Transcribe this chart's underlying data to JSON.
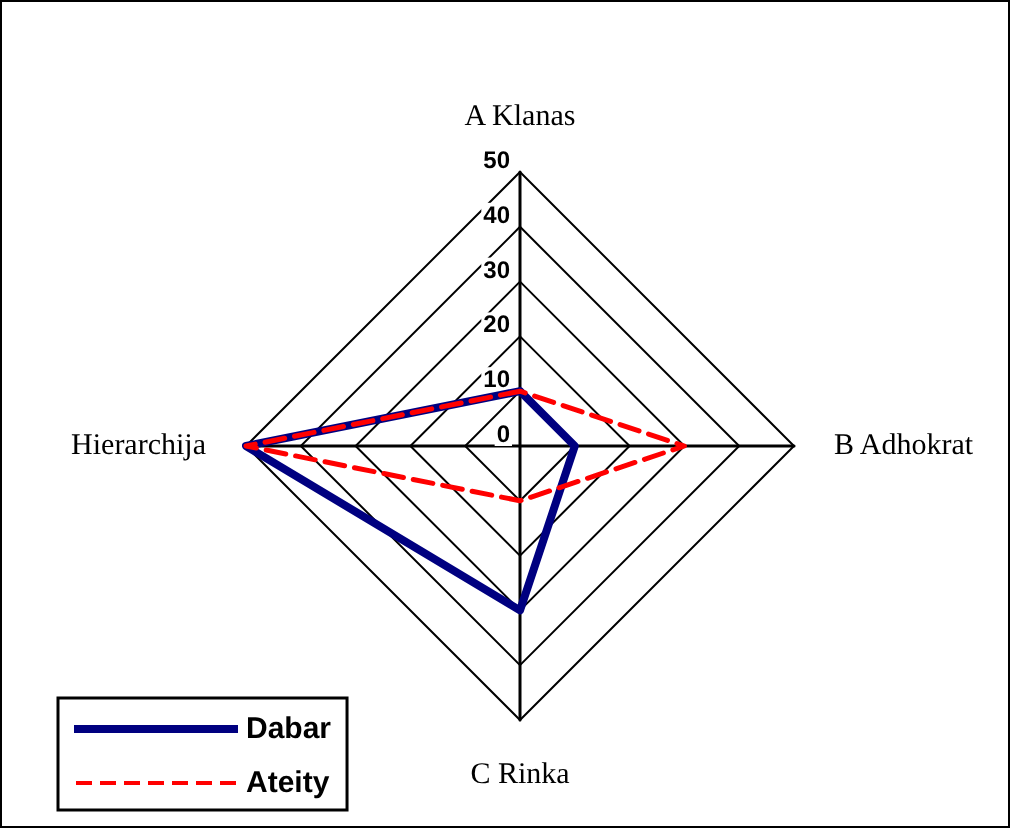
{
  "chart_data": {
    "type": "radar",
    "categories": [
      "A Klanas",
      "B Adhokrat",
      "C Rinka",
      "Hierarchija"
    ],
    "series": [
      {
        "name": "Dabar",
        "color": "#000080",
        "values": [
          10,
          10,
          30,
          50
        ],
        "line_style": "solid"
      },
      {
        "name": "Ateity",
        "color": "#ff0000",
        "values": [
          10,
          30,
          10,
          50
        ],
        "line_style": "dashed"
      }
    ],
    "ylim": [
      0,
      50
    ],
    "yticks": [
      0,
      10,
      20,
      30,
      40,
      50
    ],
    "legend": "bottom left",
    "marker": "none",
    "grid": true
  }
}
